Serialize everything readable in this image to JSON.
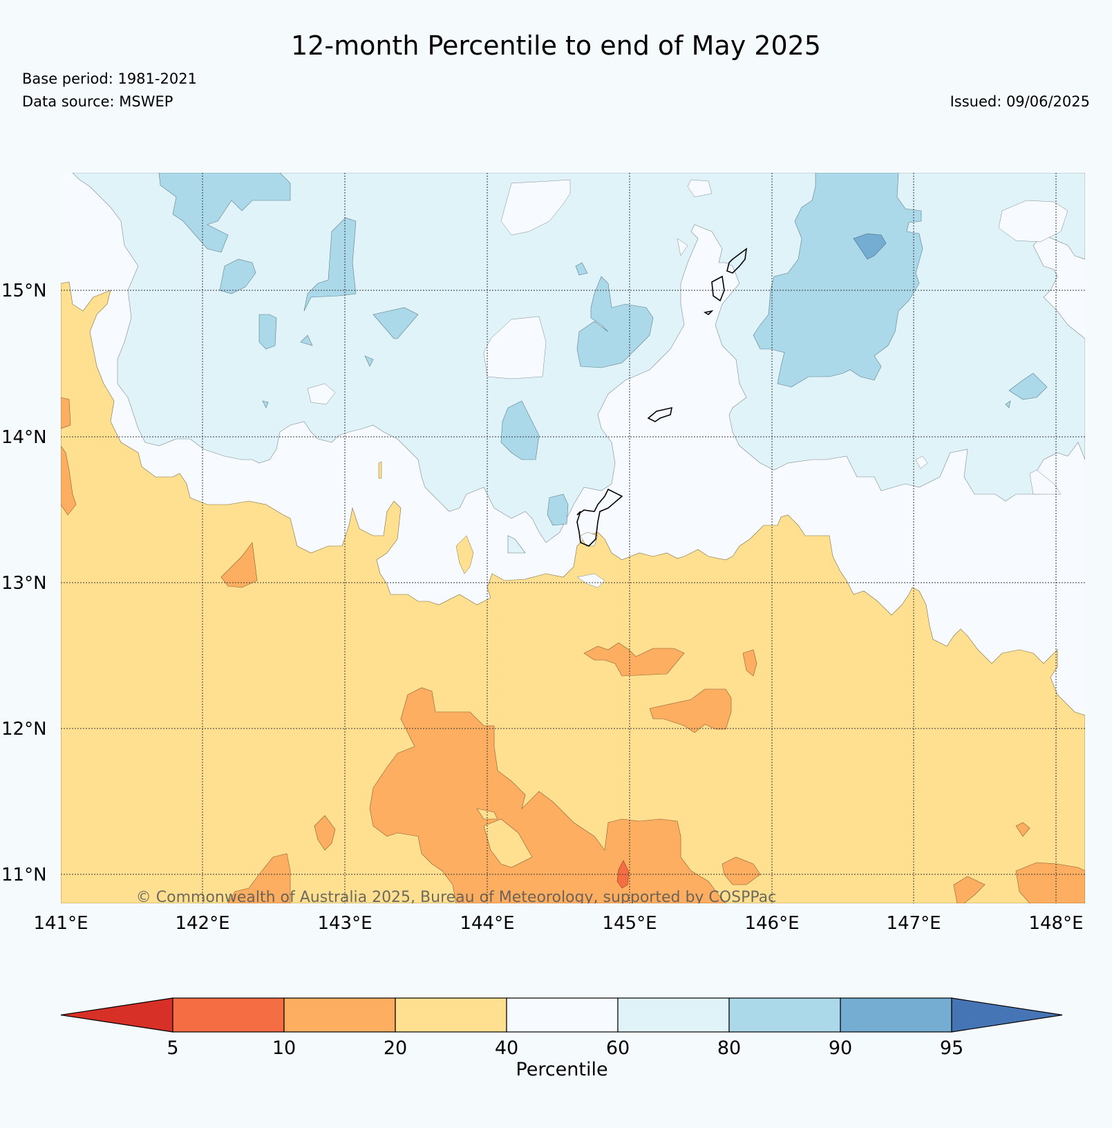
{
  "title": "12-month Percentile to end of May 2025",
  "base_period": "Base period: 1981-2021",
  "data_source": "Data source: MSWEP",
  "issued": "Issued: 09/06/2025",
  "copyright": "© Commonwealth of Australia 2025, Bureau of Meteorology, supported by COSPPac",
  "lat_labels": [
    "15°N",
    "14°N",
    "13°N",
    "12°N",
    "11°N"
  ],
  "lon_labels": [
    "141°E",
    "142°E",
    "143°E",
    "144°E",
    "145°E",
    "146°E",
    "147°E",
    "148°E"
  ],
  "colorbar": {
    "label": "Percentile",
    "ticks": [
      "5",
      "10",
      "20",
      "40",
      "60",
      "80",
      "90",
      "95"
    ],
    "colors": [
      "#d73027",
      "#f46d43",
      "#fdae61",
      "#fee090",
      "#f7fbff",
      "#e0f3f8",
      "#abd9e9",
      "#74add1",
      "#4575b4"
    ]
  },
  "map_colors": {
    "below_40": "#fee090",
    "below_20": "#fdae61",
    "below_10": "#f46d43",
    "normal": "#f7fbff",
    "above_60": "#e0f3f8",
    "above_80": "#abd9e9",
    "above_90": "#74add1"
  }
}
